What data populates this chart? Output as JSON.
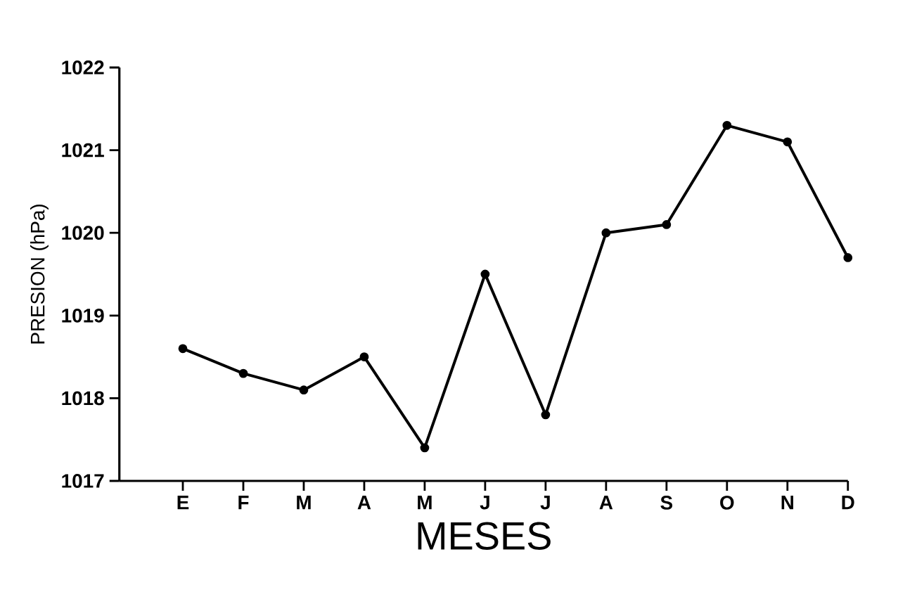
{
  "chart_data": {
    "type": "line",
    "xlabel": "MESES",
    "ylabel": "PRESION (hPa)",
    "categories": [
      "E",
      "F",
      "M",
      "A",
      "M",
      "J",
      "J",
      "A",
      "S",
      "O",
      "N",
      "D"
    ],
    "series": [
      {
        "color": "#000000",
        "values": [
          1018.6,
          1018.3,
          1018.1,
          1018.5,
          1017.4,
          1019.5,
          1017.8,
          1020.0,
          1020.1,
          1021.3,
          1021.1,
          1019.7
        ]
      }
    ],
    "ylim": [
      1017,
      1022
    ],
    "yticks": [
      1017,
      1018,
      1019,
      1020,
      1021,
      1022
    ],
    "marker": "circle"
  }
}
